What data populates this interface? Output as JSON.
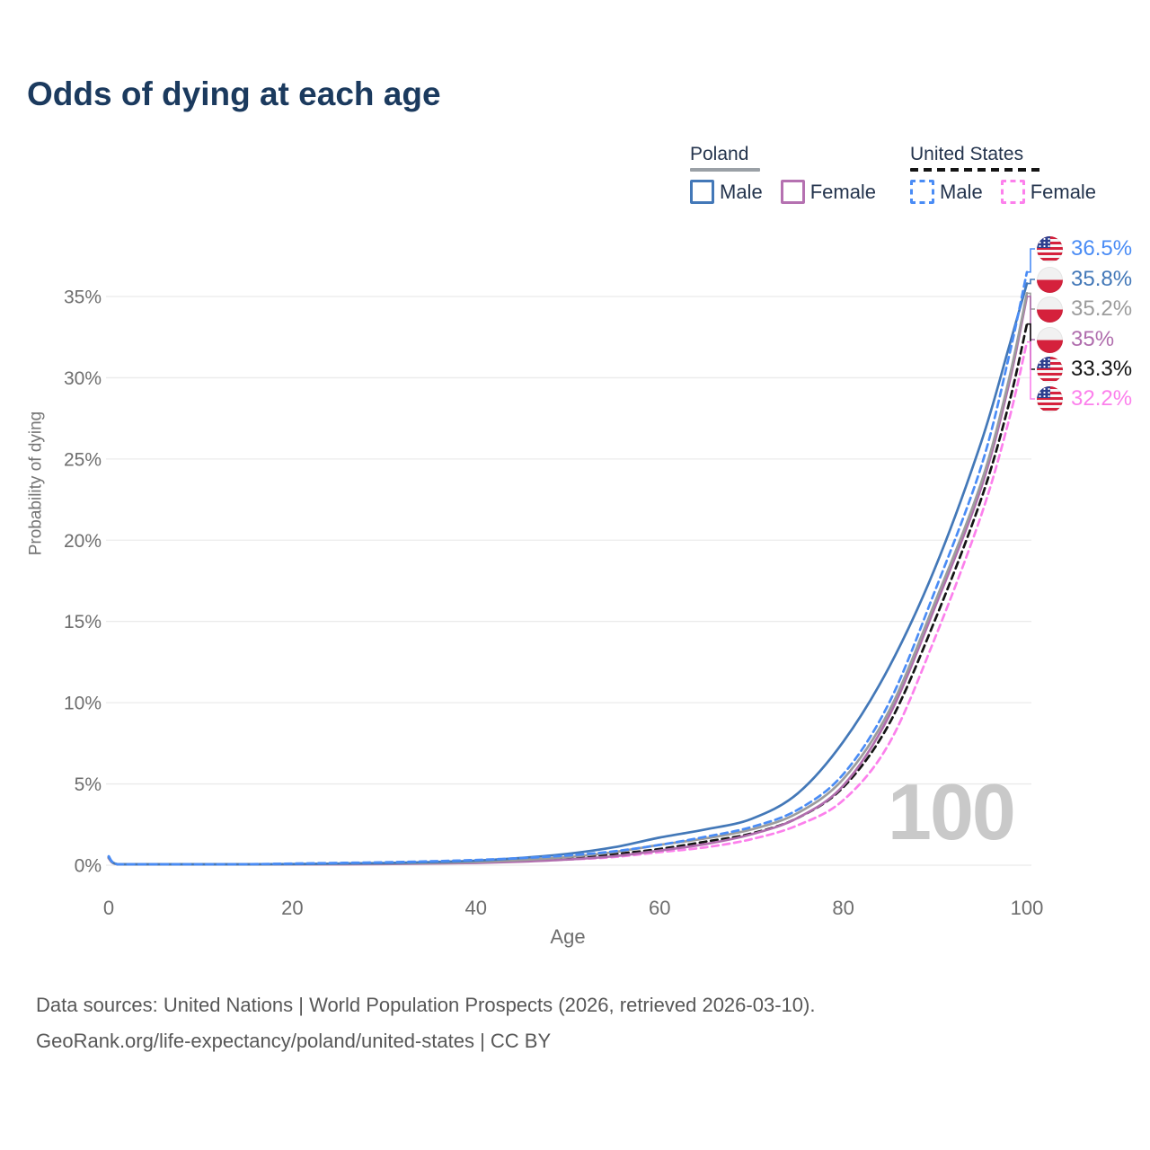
{
  "title": "Odds of dying at each age",
  "legend": {
    "groups": [
      {
        "label": "Poland",
        "line_style": "solid",
        "underline_color": "#9aa0a6",
        "items": [
          {
            "label": "Male",
            "color": "#4378b8",
            "dashed": false
          },
          {
            "label": "Female",
            "color": "#b571b1",
            "dashed": false
          }
        ]
      },
      {
        "label": "United States",
        "line_style": "dashed",
        "underline_color": "#141414",
        "items": [
          {
            "label": "Male",
            "color": "#4a8cf5",
            "dashed": true
          },
          {
            "label": "Female",
            "color": "#fc80ec",
            "dashed": true
          }
        ]
      }
    ]
  },
  "chart_data": {
    "type": "line",
    "title": "Odds of dying at each age",
    "xlabel": "Age",
    "ylabel": "Probability of dying",
    "xlim": [
      0,
      100
    ],
    "ylim": [
      0,
      38
    ],
    "grid": "horizontal-only",
    "watermark": "100",
    "x_ticks": [
      {
        "value": 0,
        "label": "0"
      },
      {
        "value": 20,
        "label": "20"
      },
      {
        "value": 40,
        "label": "40"
      },
      {
        "value": 60,
        "label": "60"
      },
      {
        "value": 80,
        "label": "80"
      },
      {
        "value": 100,
        "label": "100"
      }
    ],
    "y_ticks": [
      {
        "value": 0,
        "label": "0%"
      },
      {
        "value": 5,
        "label": "5%"
      },
      {
        "value": 10,
        "label": "10%"
      },
      {
        "value": 15,
        "label": "15%"
      },
      {
        "value": 20,
        "label": "20%"
      },
      {
        "value": 25,
        "label": "25%"
      },
      {
        "value": 30,
        "label": "30%"
      },
      {
        "value": 35,
        "label": "35%"
      }
    ],
    "x": [
      0,
      1,
      5,
      10,
      15,
      20,
      25,
      30,
      35,
      40,
      45,
      50,
      55,
      60,
      65,
      70,
      75,
      80,
      85,
      90,
      95,
      98,
      100
    ],
    "series": [
      {
        "name": "United States Female",
        "country": "us",
        "color": "#fc80ec",
        "dashed": true,
        "end_label": "32.2%",
        "values": [
          0.45,
          0.03,
          0.01,
          0.02,
          0.04,
          0.06,
          0.08,
          0.1,
          0.13,
          0.18,
          0.25,
          0.35,
          0.5,
          0.8,
          1.1,
          1.6,
          2.45,
          4.0,
          7.5,
          14.0,
          21.5,
          27.3,
          32.2
        ]
      },
      {
        "name": "United States Total",
        "country": "us",
        "color": "#141414",
        "dashed": true,
        "end_label": "33.3%",
        "values": [
          0.5,
          0.03,
          0.02,
          0.02,
          0.05,
          0.08,
          0.11,
          0.14,
          0.18,
          0.25,
          0.34,
          0.47,
          0.68,
          1.0,
          1.45,
          1.95,
          2.9,
          4.8,
          8.7,
          15.1,
          22.5,
          28.3,
          33.3
        ]
      },
      {
        "name": "Poland Female",
        "country": "pl",
        "color": "#b06dad",
        "dashed": false,
        "end_label": "35%",
        "values": [
          0.42,
          0.03,
          0.01,
          0.02,
          0.03,
          0.04,
          0.05,
          0.07,
          0.1,
          0.14,
          0.22,
          0.35,
          0.55,
          0.9,
          1.3,
          1.9,
          2.9,
          4.9,
          9.2,
          15.9,
          23.2,
          29.5,
          35.0
        ]
      },
      {
        "name": "Poland Total",
        "country": "pl",
        "color": "#9c9c9c",
        "dashed": false,
        "end_label": "35.2%",
        "values": [
          0.45,
          0.03,
          0.02,
          0.02,
          0.04,
          0.06,
          0.08,
          0.1,
          0.14,
          0.2,
          0.32,
          0.5,
          0.8,
          1.25,
          1.65,
          2.2,
          3.2,
          5.3,
          9.5,
          16.2,
          23.5,
          29.8,
          35.2
        ]
      },
      {
        "name": "Poland Male",
        "country": "pl",
        "color": "#4378b8",
        "dashed": false,
        "end_label": "35.8%",
        "values": [
          0.5,
          0.04,
          0.02,
          0.02,
          0.04,
          0.07,
          0.1,
          0.13,
          0.19,
          0.28,
          0.45,
          0.7,
          1.1,
          1.7,
          2.2,
          2.85,
          4.4,
          7.6,
          12.2,
          18.3,
          26.0,
          31.8,
          35.8
        ]
      },
      {
        "name": "United States Male",
        "country": "us",
        "color": "#4a8cf5",
        "dashed": true,
        "end_label": "36.5%",
        "values": [
          0.55,
          0.04,
          0.02,
          0.03,
          0.06,
          0.1,
          0.14,
          0.18,
          0.24,
          0.32,
          0.44,
          0.6,
          0.85,
          1.25,
          1.75,
          2.35,
          3.4,
          5.6,
          10.0,
          16.9,
          24.5,
          31.2,
          36.5
        ]
      }
    ]
  },
  "colors": {
    "title": "#1b3a5e",
    "axis_text": "#6e6e6e",
    "grid": "#ebebeb",
    "watermark": "#c9c9c9"
  },
  "footer": {
    "line1": "Data sources: United Nations | World Population Prospects (2026, retrieved 2026-03-10).",
    "line2": "GeoRank.org/life-expectancy/poland/united-states | CC BY"
  }
}
